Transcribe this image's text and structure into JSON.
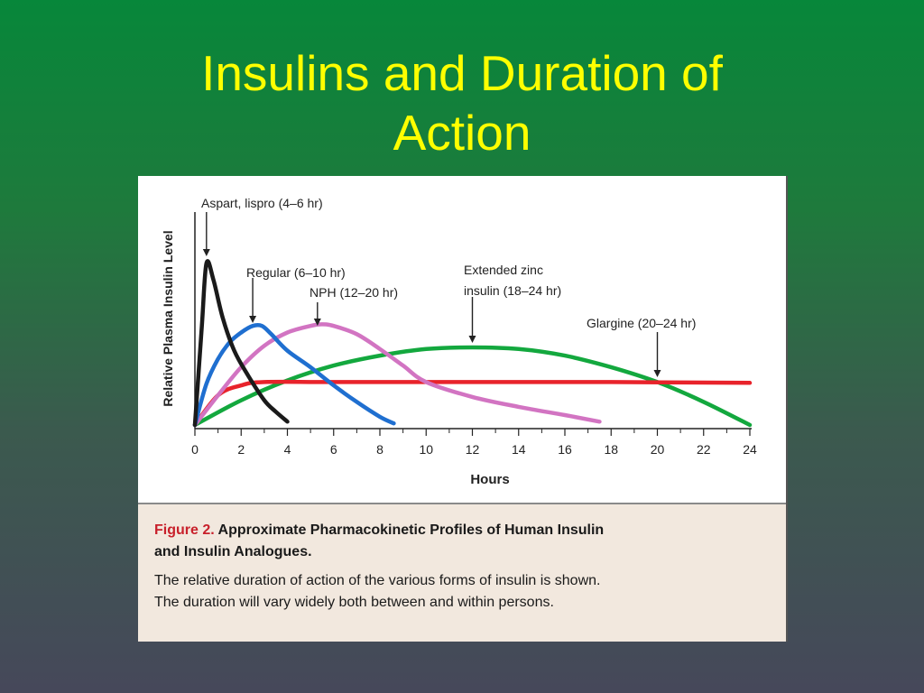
{
  "slide": {
    "title": "Insulins and Duration of\nAction"
  },
  "caption": {
    "figure_label": "Figure 2.",
    "title_line1": " Approximate Pharmacokinetic Profiles of Human Insulin",
    "title_line2": "and Insulin Analogues.",
    "desc_line1": "The relative duration of action of the various forms of insulin is shown.",
    "desc_line2": "The duration will vary widely both between and within persons."
  },
  "chart_data": {
    "type": "line",
    "xlabel": "Hours",
    "ylabel": "Relative Plasma Insulin Level",
    "xlim": [
      0,
      24
    ],
    "xticks": [
      0,
      2,
      4,
      6,
      8,
      10,
      12,
      14,
      16,
      18,
      20,
      22,
      24
    ],
    "ylim": [
      0,
      1
    ],
    "grid": false,
    "legend": "none",
    "series": [
      {
        "label": "Aspart, lispro (4–6 hr)",
        "color": "#1a1a1a",
        "x": [
          0,
          0.3,
          0.5,
          0.8,
          1.2,
          1.7,
          2.3,
          3.0,
          3.5,
          4.0
        ],
        "y": [
          0,
          0.6,
          0.98,
          0.88,
          0.65,
          0.45,
          0.3,
          0.15,
          0.08,
          0.02
        ]
      },
      {
        "label": "Regular (6–10 hr)",
        "color": "#1f6fd0",
        "x": [
          0,
          0.5,
          1.0,
          1.5,
          2.0,
          2.5,
          2.9,
          3.3,
          4.0,
          5.0,
          6.0,
          7.0,
          8.0,
          8.6
        ],
        "y": [
          0,
          0.25,
          0.4,
          0.5,
          0.56,
          0.6,
          0.6,
          0.55,
          0.45,
          0.35,
          0.24,
          0.14,
          0.05,
          0.01
        ]
      },
      {
        "label": "NPH (12–20 hr)",
        "color": "#d274c2",
        "x": [
          0,
          1,
          2,
          3,
          4,
          5,
          5.5,
          6,
          7,
          8,
          9,
          10,
          12,
          14,
          16,
          17.5
        ],
        "y": [
          0,
          0.18,
          0.35,
          0.48,
          0.56,
          0.6,
          0.61,
          0.6,
          0.55,
          0.46,
          0.36,
          0.26,
          0.17,
          0.11,
          0.06,
          0.02
        ]
      },
      {
        "label": "Extended zinc\ninsulin (18–24 hr)",
        "color": "#13a83e",
        "x": [
          0,
          2,
          4,
          6,
          8,
          10,
          12,
          14,
          16,
          18,
          20,
          22,
          24
        ],
        "y": [
          0,
          0.15,
          0.27,
          0.36,
          0.42,
          0.46,
          0.47,
          0.46,
          0.42,
          0.35,
          0.26,
          0.14,
          0.0
        ]
      },
      {
        "label": "Glargine (20–24 hr)",
        "color": "#e8232b",
        "x": [
          0,
          1,
          2,
          3,
          6,
          12,
          18,
          24
        ],
        "y": [
          0,
          0.18,
          0.24,
          0.26,
          0.26,
          0.26,
          0.26,
          0.255
        ]
      }
    ],
    "annotations": [
      {
        "text": "Aspart, lispro (4–6 hr)",
        "x": 0.5
      },
      {
        "text": "Regular (6–10 hr)",
        "x": 2.5
      },
      {
        "text": "NPH (12–20 hr)",
        "x": 5.3
      },
      {
        "text": "Extended zinc\ninsulin (18–24 hr)",
        "x": 12
      },
      {
        "text": "Glargine (20–24 hr)",
        "x": 20
      }
    ]
  }
}
